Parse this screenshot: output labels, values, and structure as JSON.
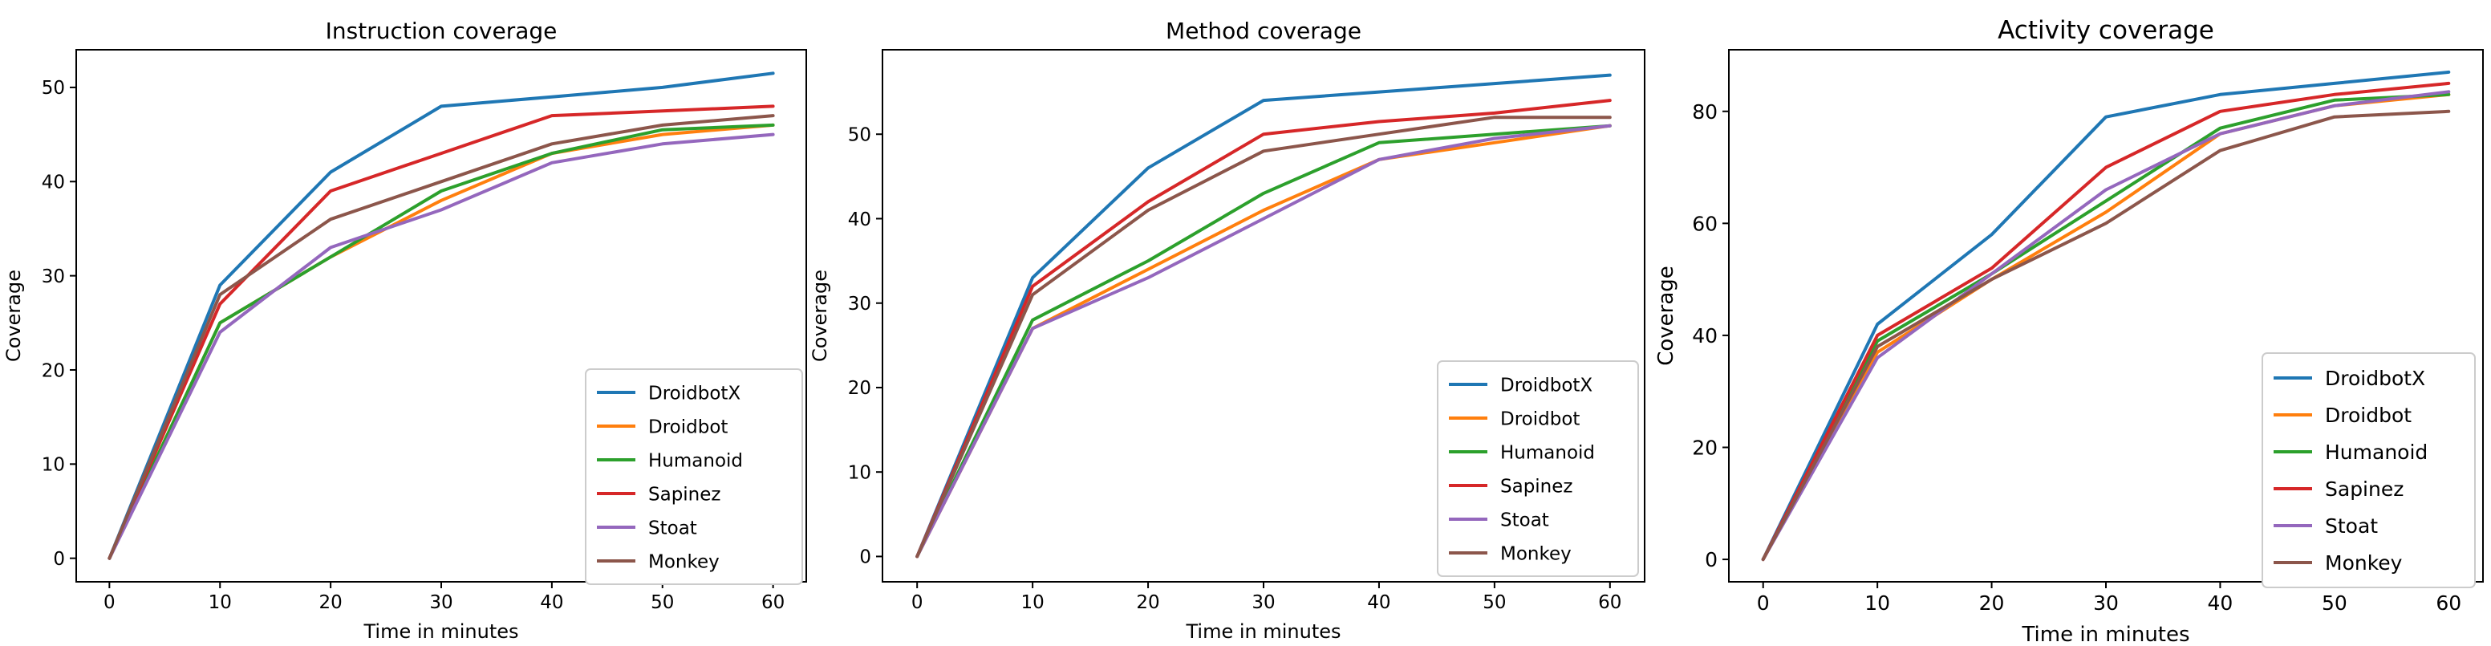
{
  "chart_data": [
    {
      "type": "line",
      "title": "Instruction coverage",
      "xlabel": "Time in minutes",
      "ylabel": "Coverage",
      "x": [
        0,
        10,
        20,
        30,
        40,
        50,
        60
      ],
      "xlim": [
        -3,
        63
      ],
      "ylim": [
        -2.5,
        54
      ],
      "xticks": [
        "0",
        "10",
        "20",
        "30",
        "40",
        "50",
        "60"
      ],
      "yticks": [
        "0",
        "10",
        "20",
        "30",
        "40",
        "50"
      ],
      "legend_position": "lower-right",
      "grid": false,
      "series": [
        {
          "name": "DroidbotX",
          "color": "#1f77b4",
          "values": [
            0,
            29,
            41,
            48,
            49,
            50,
            51.5
          ]
        },
        {
          "name": "Droidbot",
          "color": "#ff7f0e",
          "values": [
            0,
            25,
            32,
            38,
            43,
            45,
            46
          ]
        },
        {
          "name": "Humanoid",
          "color": "#2ca02c",
          "values": [
            0,
            25,
            32,
            39,
            43,
            45.5,
            46
          ]
        },
        {
          "name": "Sapinez",
          "color": "#d62728",
          "values": [
            0,
            27,
            39,
            43,
            47,
            47.5,
            48
          ]
        },
        {
          "name": "Stoat",
          "color": "#9467bd",
          "values": [
            0,
            24,
            33,
            37,
            42,
            44,
            45
          ]
        },
        {
          "name": "Monkey",
          "color": "#8c564b",
          "values": [
            0,
            28,
            36,
            40,
            44,
            46,
            47
          ]
        }
      ]
    },
    {
      "type": "line",
      "title": "Method coverage",
      "xlabel": "Time in minutes",
      "ylabel": "Coverage",
      "x": [
        0,
        10,
        20,
        30,
        40,
        50,
        60
      ],
      "xlim": [
        -3,
        63
      ],
      "ylim": [
        -3,
        60
      ],
      "xticks": [
        "0",
        "10",
        "20",
        "30",
        "40",
        "50",
        "60"
      ],
      "yticks": [
        "0",
        "10",
        "20",
        "30",
        "40",
        "50"
      ],
      "legend_position": "lower-right",
      "grid": false,
      "series": [
        {
          "name": "DroidbotX",
          "color": "#1f77b4",
          "values": [
            0,
            33,
            46,
            54,
            55,
            56,
            57
          ]
        },
        {
          "name": "Droidbot",
          "color": "#ff7f0e",
          "values": [
            0,
            27,
            34,
            41,
            47,
            49,
            51
          ]
        },
        {
          "name": "Humanoid",
          "color": "#2ca02c",
          "values": [
            0,
            28,
            35,
            43,
            49,
            50,
            51
          ]
        },
        {
          "name": "Sapinez",
          "color": "#d62728",
          "values": [
            0,
            32,
            42,
            50,
            51.5,
            52.5,
            54
          ]
        },
        {
          "name": "Stoat",
          "color": "#9467bd",
          "values": [
            0,
            27,
            33,
            40,
            47,
            49.5,
            51
          ]
        },
        {
          "name": "Monkey",
          "color": "#8c564b",
          "values": [
            0,
            31,
            41,
            48,
            50,
            52,
            52
          ]
        }
      ]
    },
    {
      "type": "line",
      "title": "Activity coverage",
      "xlabel": "Time in minutes",
      "ylabel": "Coverage",
      "x": [
        0,
        10,
        20,
        30,
        40,
        50,
        60
      ],
      "xlim": [
        -3,
        63
      ],
      "ylim": [
        -4,
        91
      ],
      "xticks": [
        "0",
        "10",
        "20",
        "30",
        "40",
        "50",
        "60"
      ],
      "yticks": [
        "0",
        "20",
        "40",
        "60",
        "80"
      ],
      "legend_position": "lower-right",
      "grid": false,
      "series": [
        {
          "name": "DroidbotX",
          "color": "#1f77b4",
          "values": [
            0,
            42,
            58,
            79,
            83,
            85,
            87
          ]
        },
        {
          "name": "Droidbot",
          "color": "#ff7f0e",
          "values": [
            0,
            37,
            50,
            62,
            76,
            81,
            83
          ]
        },
        {
          "name": "Humanoid",
          "color": "#2ca02c",
          "values": [
            0,
            39,
            51,
            64,
            77,
            82,
            83
          ]
        },
        {
          "name": "Sapinez",
          "color": "#d62728",
          "values": [
            0,
            40,
            52,
            70,
            80,
            83,
            85
          ]
        },
        {
          "name": "Stoat",
          "color": "#9467bd",
          "values": [
            0,
            36,
            51,
            66,
            76,
            81,
            83.5
          ]
        },
        {
          "name": "Monkey",
          "color": "#8c564b",
          "values": [
            0,
            38,
            50,
            60,
            73,
            79,
            80
          ]
        }
      ]
    }
  ]
}
